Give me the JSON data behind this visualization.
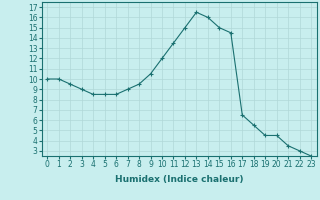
{
  "x": [
    0,
    1,
    2,
    3,
    4,
    5,
    6,
    7,
    8,
    9,
    10,
    11,
    12,
    13,
    14,
    15,
    16,
    17,
    18,
    19,
    20,
    21,
    22,
    23
  ],
  "y": [
    10,
    10,
    9.5,
    9,
    8.5,
    8.5,
    8.5,
    9,
    9.5,
    10.5,
    12,
    13.5,
    15,
    16.5,
    16,
    15,
    14.5,
    6.5,
    5.5,
    4.5,
    4.5,
    3.5,
    3,
    2.5
  ],
  "line_color": "#1a7070",
  "marker": "+",
  "marker_color": "#1a7070",
  "bg_color": "#c8eeee",
  "grid_color": "#b0d8d8",
  "xlabel": "Humidex (Indice chaleur)",
  "xlim": [
    -0.5,
    23.5
  ],
  "ylim": [
    2.5,
    17.5
  ],
  "yticks": [
    3,
    4,
    5,
    6,
    7,
    8,
    9,
    10,
    11,
    12,
    13,
    14,
    15,
    16,
    17
  ],
  "xticks": [
    0,
    1,
    2,
    3,
    4,
    5,
    6,
    7,
    8,
    9,
    10,
    11,
    12,
    13,
    14,
    15,
    16,
    17,
    18,
    19,
    20,
    21,
    22,
    23
  ],
  "tick_label_fontsize": 5.5,
  "xlabel_fontsize": 6.5,
  "line_width": 0.8,
  "marker_size": 3.5
}
